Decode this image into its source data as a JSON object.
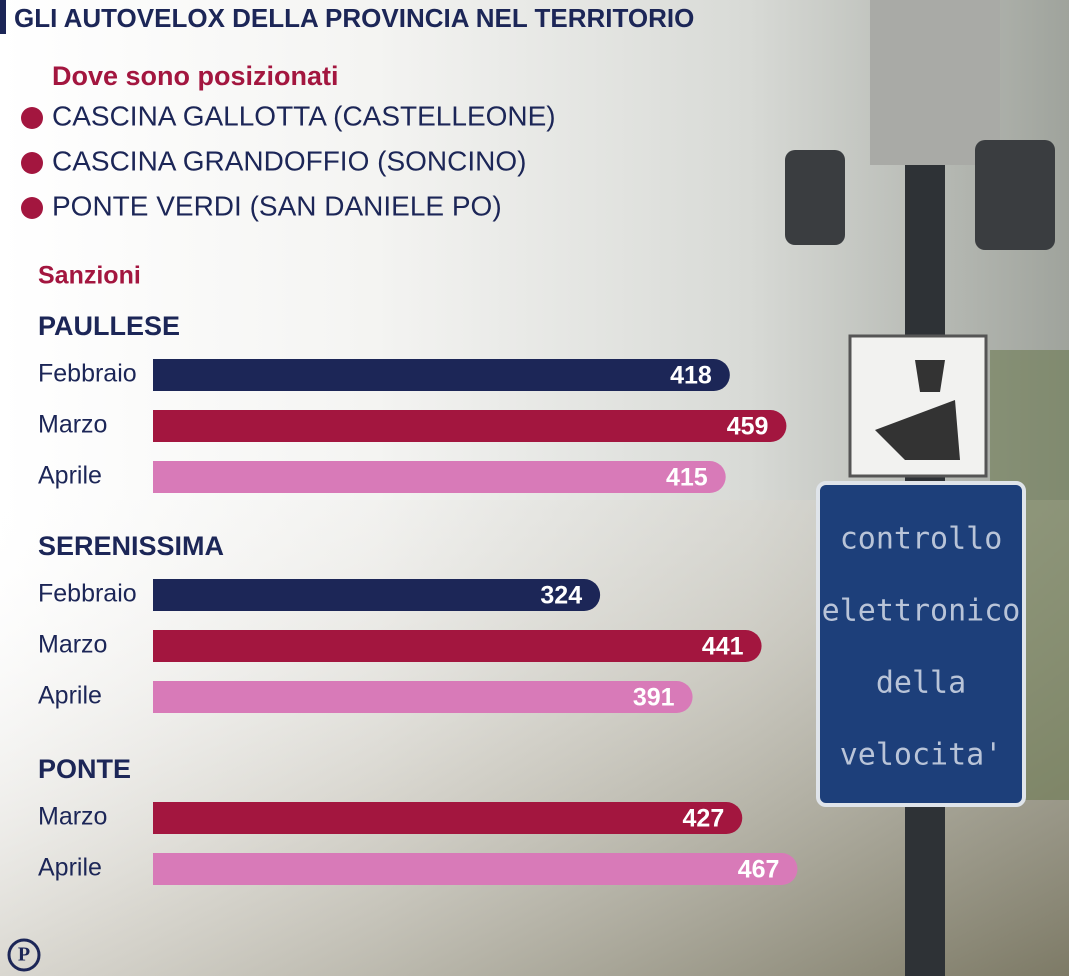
{
  "chart_data": {
    "type": "bar",
    "title": "GLI AUTOVELOX DELLA PROVINCIA NEL TERRITORIO",
    "subtitle": "Dove sono posizionati",
    "locations": [
      "CASCINA GALLOTTA (CASTELLEONE)",
      "CASCINA GRANDOFFIO (SONCINO)",
      "PONTE VERDI (SAN DANIELE PO)"
    ],
    "location_color": "#a3163f",
    "section_label": "Sanzioni",
    "groups": [
      {
        "name": "PAULLESE",
        "categories": [
          "Febbraio",
          "Marzo",
          "Aprile"
        ],
        "values": [
          418,
          459,
          415
        ],
        "colors": [
          "#1c2657",
          "#a3163f",
          "#d87ab8"
        ]
      },
      {
        "name": "SERENISSIMA",
        "categories": [
          "Febbraio",
          "Marzo",
          "Aprile"
        ],
        "values": [
          324,
          441,
          391
        ],
        "colors": [
          "#1c2657",
          "#a3163f",
          "#d87ab8"
        ]
      },
      {
        "name": "PONTE",
        "categories": [
          "Marzo",
          "Aprile"
        ],
        "values": [
          427,
          467
        ],
        "colors": [
          "#a3163f",
          "#d87ab8"
        ]
      }
    ],
    "sign_text": [
      "controllo",
      "elettronico",
      "della",
      "velocita'"
    ],
    "logo": "P"
  }
}
